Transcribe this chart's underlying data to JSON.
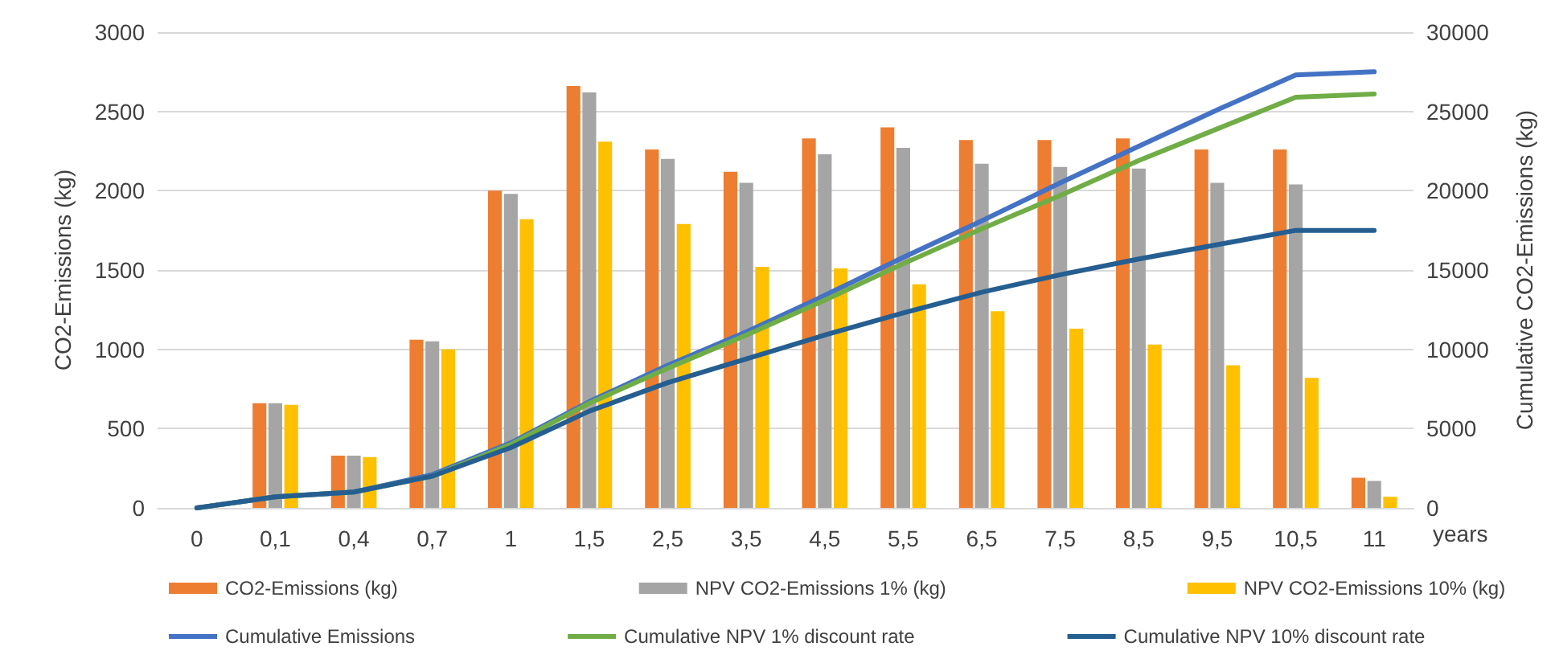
{
  "chart_data": {
    "type": "bar",
    "xlabel": "years",
    "ylabel": "CO2-Emissions (kg)",
    "y2label": "Cumulative CO2-Emissions (kg)",
    "categories": [
      "0",
      "0,1",
      "0,4",
      "0,7",
      "1",
      "1,5",
      "2,5",
      "3,5",
      "4,5",
      "5,5",
      "6,5",
      "7,5",
      "8,5",
      "9,5",
      "10,5",
      "11"
    ],
    "series": [
      {
        "name": "CO2-Emissions (kg)",
        "color": "#ed7d31",
        "values": [
          null,
          660,
          330,
          1060,
          2000,
          2660,
          2260,
          2120,
          2330,
          2400,
          2320,
          2320,
          2330,
          2260,
          2260,
          190
        ]
      },
      {
        "name": "NPV CO2-Emissions 1% (kg)",
        "color": "#a5a5a5",
        "values": [
          null,
          660,
          330,
          1050,
          1980,
          2620,
          2200,
          2050,
          2230,
          2270,
          2170,
          2150,
          2140,
          2050,
          2040,
          170
        ]
      },
      {
        "name": "NPV CO2-Emissions 10% (kg)",
        "color": "#ffc000",
        "values": [
          null,
          650,
          320,
          1000,
          1820,
          2310,
          1790,
          1520,
          1510,
          1410,
          1240,
          1130,
          1030,
          900,
          820,
          70
        ]
      },
      {
        "name": "Cumulative Emissions",
        "type": "line",
        "axis": "y2",
        "color": "#4472c4",
        "values": [
          0,
          700,
          1000,
          2100,
          4100,
          6700,
          9000,
          11100,
          13400,
          15800,
          18100,
          20500,
          22800,
          25100,
          27300,
          27500
        ]
      },
      {
        "name": "Cumulative NPV 1% discount rate",
        "type": "line",
        "axis": "y2",
        "color": "#70ad47",
        "values": [
          0,
          700,
          1000,
          2000,
          4000,
          6600,
          8800,
          10900,
          13100,
          15400,
          17600,
          19700,
          21900,
          23900,
          25900,
          26100
        ]
      },
      {
        "name": "Cumulative NPV 10% discount rate",
        "type": "line",
        "axis": "y2",
        "color": "#255e91",
        "values": [
          0,
          700,
          1000,
          2000,
          3800,
          6100,
          7900,
          9400,
          10900,
          12300,
          13600,
          14700,
          15700,
          16600,
          17500,
          17500
        ]
      }
    ],
    "ylim": [
      0,
      3000
    ],
    "yticks": [
      0,
      500,
      1000,
      1500,
      2000,
      2500,
      3000
    ],
    "y2lim": [
      0,
      30000
    ],
    "y2ticks": [
      0,
      5000,
      10000,
      15000,
      20000,
      25000,
      30000
    ],
    "grid": "y",
    "legend": "bottom",
    "marker": "none",
    "line_style": "solid"
  }
}
